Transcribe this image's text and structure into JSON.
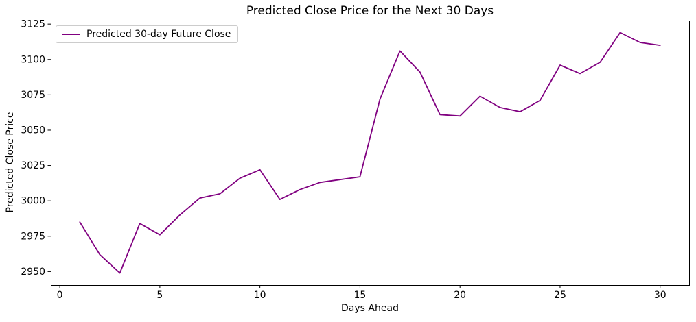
{
  "chart_data": {
    "type": "line",
    "title": "Predicted Close Price for the Next 30 Days",
    "xlabel": "Days Ahead",
    "ylabel": "Predicted Close Price",
    "x": [
      1,
      2,
      3,
      4,
      5,
      6,
      7,
      8,
      9,
      10,
      11,
      12,
      13,
      14,
      15,
      16,
      17,
      18,
      19,
      20,
      21,
      22,
      23,
      24,
      25,
      26,
      27,
      28,
      29,
      30
    ],
    "series": [
      {
        "name": "Predicted 30-day Future Close",
        "color": "#800080",
        "values": [
          2985,
          2962,
          2949,
          2984,
          2976,
          2990,
          3002,
          3005,
          3016,
          3022,
          3001,
          3008,
          3013,
          3015,
          3017,
          3072,
          3106,
          3091,
          3061,
          3060,
          3074,
          3066,
          3063,
          3071,
          3096,
          3090,
          3098,
          3119,
          3112,
          3110
        ]
      }
    ],
    "xticks": [
      0,
      5,
      10,
      15,
      20,
      25,
      30
    ],
    "yticks": [
      2950,
      2975,
      3000,
      3025,
      3050,
      3075,
      3100,
      3125
    ],
    "xlim": [
      -0.45,
      31.45
    ],
    "ylim": [
      2940.5,
      3127.5
    ],
    "grid": false,
    "legend_position": "upper left",
    "legend_border_color": "#cccccc",
    "frame_color": "#000000",
    "background_color": "#ffffff"
  }
}
